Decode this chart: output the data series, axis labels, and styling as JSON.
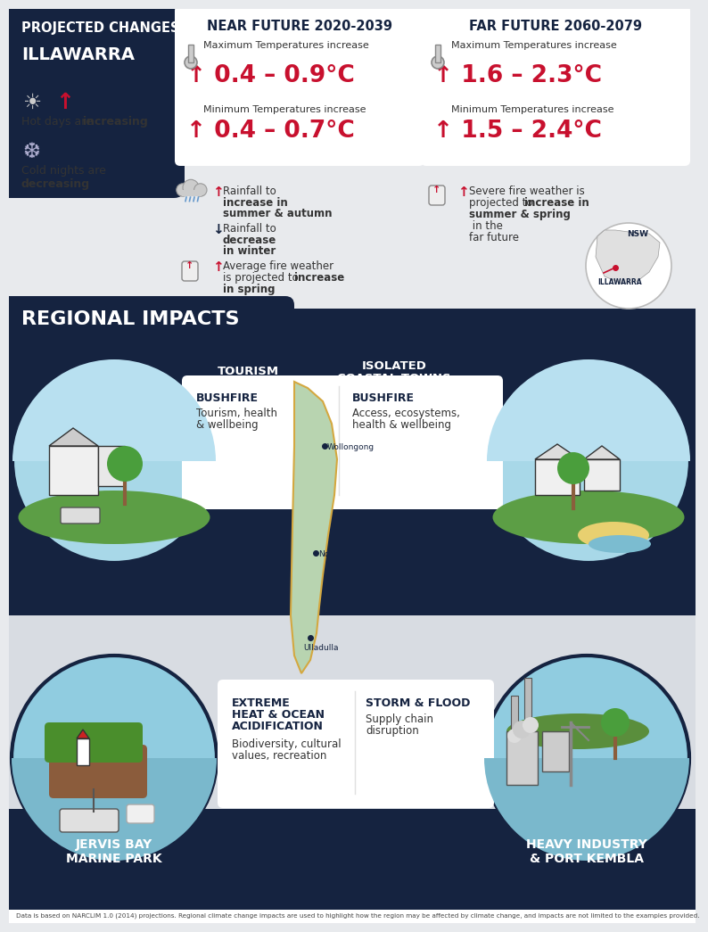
{
  "title_line1": "PROJECTED CHANGES:",
  "title_line2": "ILLAWARRA",
  "near_future_title": "NEAR FUTURE 2020-2039",
  "far_future_title": "FAR FUTURE 2060-2079",
  "near_max_label": "Maximum Temperatures increase",
  "near_max_val": "↑ 0.4 – 0.9°C",
  "near_min_label": "Minimum Temperatures increase",
  "near_min_val": "↑ 0.4 – 0.7°C",
  "far_max_label": "Maximum Temperatures increase",
  "far_max_val": "↑ 1.6 – 2.3°C",
  "far_min_label": "Minimum Temperatures increase",
  "far_min_val": "↑ 1.5 – 2.4°C",
  "regional_impacts_title": "REGIONAL IMPACTS",
  "tourism_title": "TOURISM",
  "coastal_title_1": "ISOLATED",
  "coastal_title_2": "COASTAL TOWNS",
  "tourism_hazard": "BUSHFIRE",
  "tourism_impact": "Tourism, health\n& wellbeing",
  "coastal_hazard": "BUSHFIRE",
  "coastal_impact": "Access, ecosystems,\nhealth & wellbeing",
  "jervis_title_1": "JERVIS BAY",
  "jervis_title_2": "MARINE PARK",
  "industry_title_1": "HEAVY INDUSTRY",
  "industry_title_2": "& PORT KEMBLA",
  "jervis_hazard_1": "EXTREME",
  "jervis_hazard_2": "HEAT & OCEAN",
  "jervis_hazard_3": "ACIDIFICATION",
  "jervis_impact": "Biodiversity, cultural\nvalues, recreation",
  "industry_hazard": "STORM & FLOOD",
  "industry_impact": "Supply chain\ndisruption",
  "footnote": "Data is based on NARCLIM 1.0 (2014) projections. Regional climate change impacts are used to highlight how the region may be affected by climate change, and impacts are not limited to the examples provided.",
  "red_color": "#c8102e",
  "dark_navy": "#152340",
  "mid_gray": "#d0d4d9",
  "light_gray": "#e8eaed",
  "white": "#ffffff",
  "wollongong_label": "Wollongong",
  "nowra_label": "Nowra",
  "ulladulla_label": "Ulladulla",
  "nsw_label": "NSW",
  "illawarra_label": "ILLAWARRA"
}
